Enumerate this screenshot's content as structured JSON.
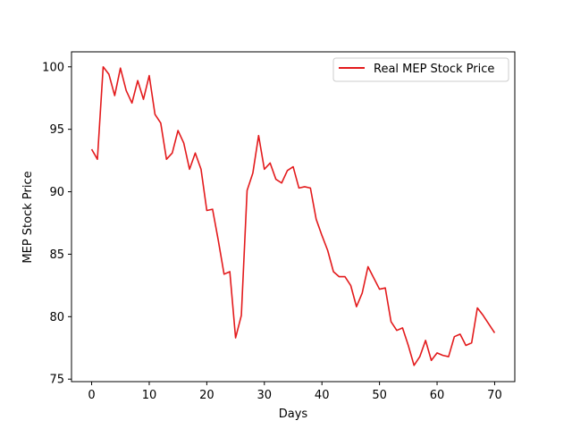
{
  "chart_data": {
    "type": "line",
    "title": "",
    "xlabel": "Days",
    "ylabel": "MEP Stock Price",
    "xlim": [
      -3.5,
      73.5
    ],
    "ylim": [
      74.8,
      101.2
    ],
    "xticks": [
      0,
      10,
      20,
      30,
      40,
      50,
      60,
      70
    ],
    "yticks": [
      75,
      80,
      85,
      90,
      95,
      100
    ],
    "grid": false,
    "legend_position": "top-right",
    "series": [
      {
        "name": "Real MEP Stock Price",
        "color": "#e31a1c",
        "x": [
          0,
          1,
          2,
          3,
          4,
          5,
          6,
          7,
          8,
          9,
          10,
          11,
          12,
          13,
          14,
          15,
          16,
          17,
          18,
          19,
          20,
          21,
          22,
          23,
          24,
          25,
          26,
          27,
          28,
          29,
          30,
          31,
          32,
          33,
          34,
          35,
          36,
          37,
          38,
          39,
          40,
          41,
          42,
          43,
          44,
          45,
          46,
          47,
          48,
          49,
          50,
          51,
          52,
          53,
          54,
          55,
          56,
          57,
          58,
          59,
          60,
          61,
          62,
          63,
          64,
          65,
          66,
          67,
          68,
          69,
          70
        ],
        "values": [
          93.4,
          92.6,
          100.0,
          99.4,
          97.7,
          99.9,
          98.1,
          97.1,
          98.9,
          97.4,
          99.3,
          96.2,
          95.5,
          92.6,
          93.1,
          94.9,
          93.9,
          91.8,
          93.1,
          91.8,
          88.5,
          88.6,
          86.1,
          83.4,
          83.6,
          78.3,
          80.1,
          90.1,
          91.5,
          94.5,
          91.8,
          92.3,
          91.0,
          90.7,
          91.7,
          92.0,
          90.3,
          90.4,
          90.3,
          87.8,
          86.5,
          85.3,
          83.6,
          83.2,
          83.2,
          82.5,
          80.8,
          81.9,
          84.0,
          83.1,
          82.2,
          82.3,
          79.6,
          78.9,
          79.1,
          77.7,
          76.1,
          76.8,
          78.1,
          76.5,
          77.1,
          76.9,
          76.8,
          78.4,
          78.6,
          77.7,
          77.9,
          80.7,
          80.1,
          79.4,
          78.7
        ]
      }
    ]
  }
}
